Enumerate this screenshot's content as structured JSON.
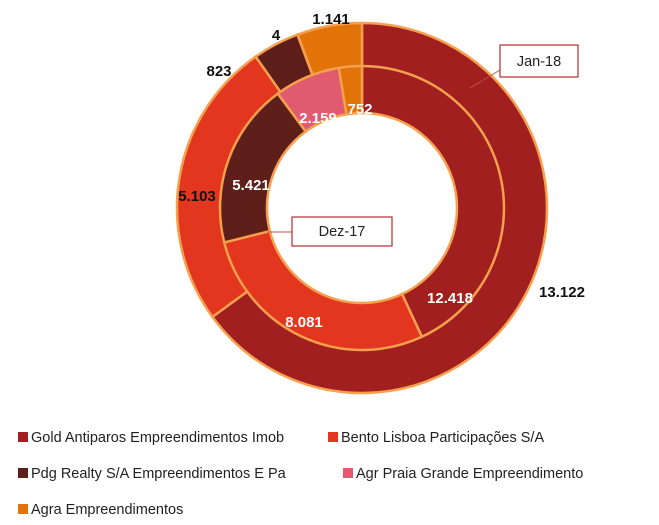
{
  "chart_data": {
    "type": "doughnut",
    "categories": [
      "Gold Antiparos Empreendimentos Imob",
      "Bento Lisboa Participações S/A",
      "Pdg Realty S/A Empreendimentos E Pa",
      "Agr Praia Grande Empreendimento",
      "Agra Empreendimentos"
    ],
    "colors": [
      "#a11f1f",
      "#e3361f",
      "#5e1f1b",
      "#e05a70",
      "#e27309"
    ],
    "series": [
      {
        "name": "Jan-18",
        "values": [
          13122,
          5103,
          823,
          4,
          1141
        ],
        "value_labels": [
          "13.122",
          "5.103",
          "823",
          "4",
          "1.141"
        ]
      },
      {
        "name": "Dez-17",
        "values": [
          12418,
          8081,
          5421,
          2159,
          752
        ],
        "value_labels": [
          "12.418",
          "8.081",
          "5.421",
          "2.159",
          "752"
        ]
      }
    ]
  }
}
